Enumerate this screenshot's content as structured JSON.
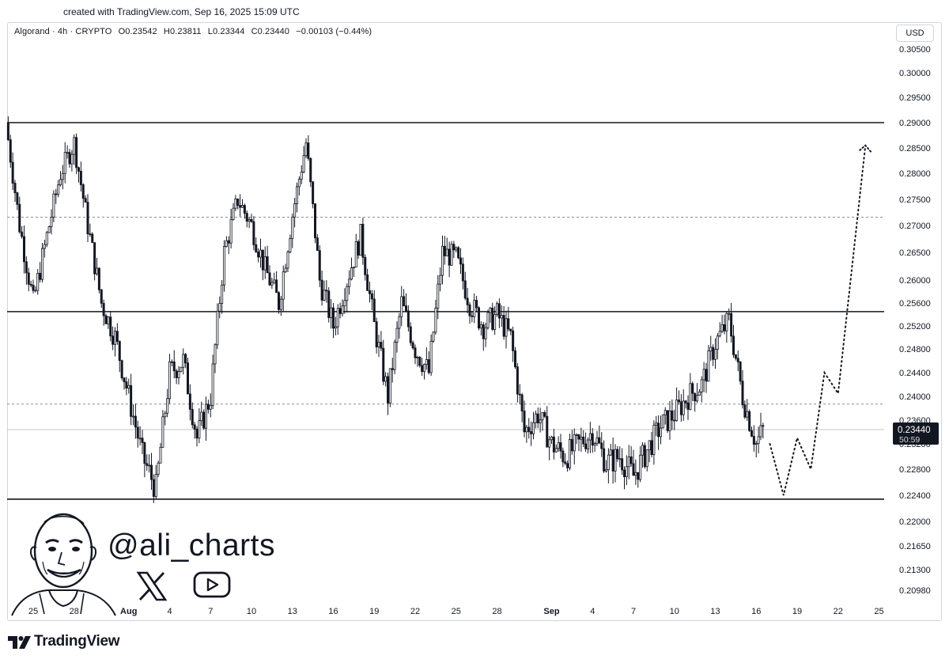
{
  "watermark": "created with TradingView.com, Sep 16, 2025 15:09 UTC",
  "legend": {
    "symbol": "Algorand · 4h · CRYPTO",
    "open": "O0.23542",
    "high": "H0.23811",
    "low": "L0.23344",
    "close": "C0.23440",
    "change": "−0.00103 (−0.44%)"
  },
  "currency": "USD",
  "price_label": {
    "value": "0.23440",
    "countdown": "50:59"
  },
  "handle": "@ali_charts",
  "brand": "TradingView",
  "icons": [
    "x-logo-icon",
    "youtube-play-icon",
    "tradingview-logo-icon",
    "avatar-illustration"
  ],
  "colors": {
    "candle": "#131722",
    "level": "#131722",
    "dashed": "#8a8e99",
    "price_tag": "#131722"
  },
  "chart_data": {
    "type": "candlestick",
    "interval": "4h",
    "y_ticks": [
      0.305,
      0.3,
      0.295,
      0.29,
      0.285,
      0.28,
      0.275,
      0.27,
      0.265,
      0.26,
      0.256,
      0.252,
      0.248,
      0.244,
      0.24,
      0.236,
      0.232,
      0.228,
      0.224,
      0.22,
      0.2165,
      0.213,
      0.2098
    ],
    "y_tick_labels": [
      "0.30500",
      "0.30000",
      "0.29500",
      "0.29000",
      "0.28500",
      "0.28000",
      "0.27500",
      "0.27000",
      "0.26500",
      "0.26000",
      "0.25600",
      "0.25200",
      "0.24800",
      "0.24400",
      "0.24000",
      "0.23600",
      "0.23200",
      "0.22800",
      "0.22400",
      "0.22000",
      "0.21650",
      "0.21300",
      "0.20980"
    ],
    "x_ticks": [
      {
        "label": "25",
        "date": "2025-07-25"
      },
      {
        "label": "28",
        "date": "2025-07-28"
      },
      {
        "label": "Aug",
        "date": "2025-08-01"
      },
      {
        "label": "4",
        "date": "2025-08-04"
      },
      {
        "label": "7",
        "date": "2025-08-07"
      },
      {
        "label": "10",
        "date": "2025-08-10"
      },
      {
        "label": "13",
        "date": "2025-08-13"
      },
      {
        "label": "16",
        "date": "2025-08-16"
      },
      {
        "label": "19",
        "date": "2025-08-19"
      },
      {
        "label": "22",
        "date": "2025-08-22"
      },
      {
        "label": "25",
        "date": "2025-08-25"
      },
      {
        "label": "28",
        "date": "2025-08-28"
      },
      {
        "label": "Sep",
        "date": "2025-09-01"
      },
      {
        "label": "4",
        "date": "2025-09-04"
      },
      {
        "label": "7",
        "date": "2025-09-07"
      },
      {
        "label": "10",
        "date": "2025-09-10"
      },
      {
        "label": "13",
        "date": "2025-09-13"
      },
      {
        "label": "16",
        "date": "2025-09-16"
      },
      {
        "label": "19",
        "date": "2025-09-19"
      },
      {
        "label": "22",
        "date": "2025-09-22"
      },
      {
        "label": "25",
        "date": "2025-09-25"
      }
    ],
    "bold_tick_labels": [
      "Aug",
      "Sep"
    ],
    "horizontal_levels_solid": [
      0.29,
      0.2545,
      0.2234
    ],
    "horizontal_levels_dashed": [
      0.2716,
      0.2387
    ],
    "last_price_line": 0.2344,
    "close_path": [
      [
        "2025-07-23",
        0.29
      ],
      [
        "2025-07-24",
        0.27
      ],
      [
        "2025-07-25",
        0.256
      ],
      [
        "2025-07-26",
        0.268
      ],
      [
        "2025-07-27",
        0.28
      ],
      [
        "2025-07-28",
        0.286
      ],
      [
        "2025-07-29",
        0.27
      ],
      [
        "2025-07-30",
        0.256
      ],
      [
        "2025-07-31",
        0.25
      ],
      [
        "2025-08-01",
        0.24
      ],
      [
        "2025-08-02",
        0.23
      ],
      [
        "2025-08-03",
        0.225
      ],
      [
        "2025-08-04",
        0.244
      ],
      [
        "2025-08-05",
        0.246
      ],
      [
        "2025-08-06",
        0.233
      ],
      [
        "2025-08-07",
        0.24
      ],
      [
        "2025-08-08",
        0.265
      ],
      [
        "2025-08-09",
        0.275
      ],
      [
        "2025-08-10",
        0.27
      ],
      [
        "2025-08-11",
        0.262
      ],
      [
        "2025-08-12",
        0.256
      ],
      [
        "2025-08-13",
        0.272
      ],
      [
        "2025-08-14",
        0.286
      ],
      [
        "2025-08-15",
        0.26
      ],
      [
        "2025-08-16",
        0.252
      ],
      [
        "2025-08-17",
        0.26
      ],
      [
        "2025-08-18",
        0.268
      ],
      [
        "2025-08-19",
        0.252
      ],
      [
        "2025-08-20",
        0.24
      ],
      [
        "2025-08-21",
        0.256
      ],
      [
        "2025-08-22",
        0.248
      ],
      [
        "2025-08-23",
        0.244
      ],
      [
        "2025-08-24",
        0.265
      ],
      [
        "2025-08-25",
        0.264
      ],
      [
        "2025-08-26",
        0.256
      ],
      [
        "2025-08-27",
        0.252
      ],
      [
        "2025-08-28",
        0.254
      ],
      [
        "2025-08-29",
        0.25
      ],
      [
        "2025-08-30",
        0.234
      ],
      [
        "2025-08-31",
        0.237
      ],
      [
        "2025-09-01",
        0.232
      ],
      [
        "2025-09-02",
        0.23
      ],
      [
        "2025-09-03",
        0.232
      ],
      [
        "2025-09-04",
        0.234
      ],
      [
        "2025-09-05",
        0.229
      ],
      [
        "2025-09-06",
        0.23
      ],
      [
        "2025-09-07",
        0.227
      ],
      [
        "2025-09-08",
        0.231
      ],
      [
        "2025-09-09",
        0.235
      ],
      [
        "2025-09-10",
        0.237
      ],
      [
        "2025-09-11",
        0.24
      ],
      [
        "2025-09-12",
        0.242
      ],
      [
        "2025-09-13",
        0.249
      ],
      [
        "2025-09-14",
        0.253
      ],
      [
        "2025-09-15",
        0.24
      ],
      [
        "2025-09-16",
        0.232
      ],
      [
        "2025-09-16T12:00",
        0.2344
      ]
    ],
    "projection": [
      [
        "2025-09-17",
        0.232
      ],
      [
        "2025-09-18",
        0.224
      ],
      [
        "2025-09-19",
        0.233
      ],
      [
        "2025-09-20",
        0.228
      ],
      [
        "2025-09-21",
        0.244
      ],
      [
        "2025-09-22",
        0.2405
      ],
      [
        "2025-09-24",
        0.2855
      ]
    ],
    "yrange": [
      0.2098,
      0.305
    ]
  }
}
